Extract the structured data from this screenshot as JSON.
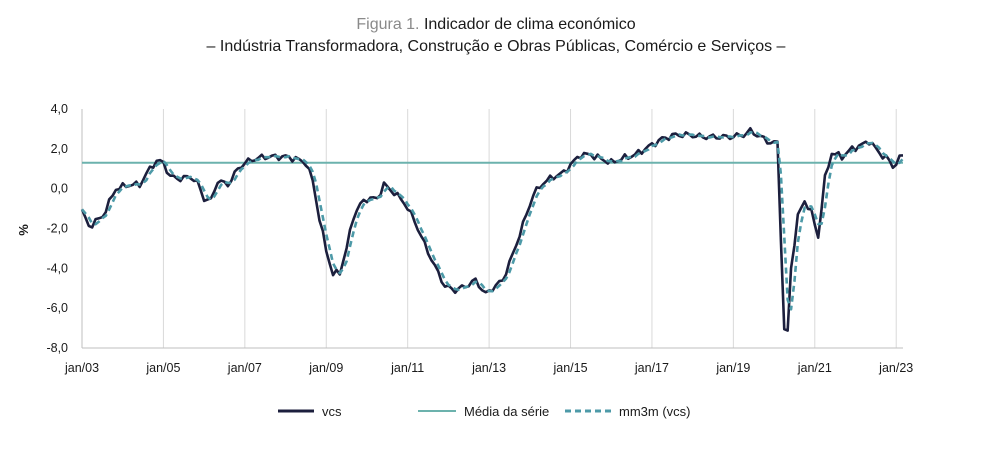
{
  "chart_data": {
    "type": "line",
    "title_prefix": "Figura 1.",
    "title": "Indicador de clima económico",
    "subtitle": "– Indústria Transformadora, Construção e Obras Públicas, Comércio e Serviços –",
    "xlabel": "",
    "ylabel": "%",
    "ylim": [
      -8,
      4
    ],
    "yticks": [
      -8,
      -6,
      -4,
      -2,
      0,
      2,
      4
    ],
    "ytick_labels": [
      "-8,0",
      "-6,0",
      "-4,0",
      "-2,0",
      "0,0",
      "2,0",
      "4,0"
    ],
    "xlim": [
      "2003-01",
      "2023-03"
    ],
    "xtick_labels": [
      "jan/03",
      "jan/05",
      "jan/07",
      "jan/09",
      "jan/11",
      "jan/13",
      "jan/15",
      "jan/17",
      "jan/19",
      "jan/21",
      "jan/23"
    ],
    "grid": "vertical",
    "legend_position": "bottom",
    "colors": {
      "vcs": "#1c1f3d",
      "media": "#6cb2ad",
      "mm3m": "#4d9aa8"
    },
    "anchors": [
      [
        "2003-01",
        -1.1
      ],
      [
        "2003-03",
        -1.9
      ],
      [
        "2003-07",
        -1.4
      ],
      [
        "2003-11",
        0.0
      ],
      [
        "2004-03",
        0.2
      ],
      [
        "2004-06",
        0.2
      ],
      [
        "2004-09",
        1.0
      ],
      [
        "2004-11",
        1.4
      ],
      [
        "2005-01",
        1.3
      ],
      [
        "2005-03",
        0.6
      ],
      [
        "2005-06",
        0.5
      ],
      [
        "2005-09",
        0.6
      ],
      [
        "2005-11",
        0.3
      ],
      [
        "2006-01",
        -0.5
      ],
      [
        "2006-03",
        -0.6
      ],
      [
        "2006-05",
        0.4
      ],
      [
        "2006-08",
        0.2
      ],
      [
        "2006-11",
        1.0
      ],
      [
        "2007-01",
        1.3
      ],
      [
        "2007-04",
        1.5
      ],
      [
        "2007-07",
        1.6
      ],
      [
        "2007-10",
        1.6
      ],
      [
        "2008-01",
        1.6
      ],
      [
        "2008-04",
        1.5
      ],
      [
        "2008-07",
        1.3
      ],
      [
        "2008-09",
        0.4
      ],
      [
        "2008-11",
        -1.5
      ],
      [
        "2009-01",
        -3.1
      ],
      [
        "2009-03",
        -4.3
      ],
      [
        "2009-05",
        -4.2
      ],
      [
        "2009-07",
        -3.0
      ],
      [
        "2009-09",
        -1.4
      ],
      [
        "2009-11",
        -0.8
      ],
      [
        "2010-01",
        -0.5
      ],
      [
        "2010-04",
        -0.5
      ],
      [
        "2010-06",
        0.2
      ],
      [
        "2010-09",
        -0.2
      ],
      [
        "2010-12",
        -0.7
      ],
      [
        "2011-03",
        -1.6
      ],
      [
        "2011-06",
        -2.8
      ],
      [
        "2011-09",
        -3.9
      ],
      [
        "2011-12",
        -4.9
      ],
      [
        "2012-03",
        -5.1
      ],
      [
        "2012-06",
        -4.9
      ],
      [
        "2012-09",
        -4.6
      ],
      [
        "2012-12",
        -5.3
      ],
      [
        "2013-02",
        -5.0
      ],
      [
        "2013-05",
        -4.6
      ],
      [
        "2013-08",
        -3.3
      ],
      [
        "2013-11",
        -1.8
      ],
      [
        "2014-02",
        -0.3
      ],
      [
        "2014-05",
        0.3
      ],
      [
        "2014-08",
        0.6
      ],
      [
        "2014-11",
        0.8
      ],
      [
        "2015-01",
        1.2
      ],
      [
        "2015-04",
        1.7
      ],
      [
        "2015-07",
        1.7
      ],
      [
        "2015-10",
        1.5
      ],
      [
        "2016-01",
        1.3
      ],
      [
        "2016-04",
        1.5
      ],
      [
        "2016-08",
        1.7
      ],
      [
        "2016-12",
        2.1
      ],
      [
        "2017-04",
        2.5
      ],
      [
        "2017-08",
        2.7
      ],
      [
        "2017-12",
        2.7
      ],
      [
        "2018-04",
        2.6
      ],
      [
        "2018-08",
        2.6
      ],
      [
        "2018-12",
        2.6
      ],
      [
        "2019-04",
        2.7
      ],
      [
        "2019-06",
        2.9
      ],
      [
        "2019-09",
        2.6
      ],
      [
        "2019-12",
        2.3
      ],
      [
        "2020-02",
        2.3
      ],
      [
        "2020-04",
        -7.1
      ],
      [
        "2020-05",
        -7.2
      ],
      [
        "2020-06",
        -4.0
      ],
      [
        "2020-08",
        -1.4
      ],
      [
        "2020-10",
        -0.6
      ],
      [
        "2020-12",
        -1.2
      ],
      [
        "2021-02",
        -2.4
      ],
      [
        "2021-04",
        0.5
      ],
      [
        "2021-06",
        1.8
      ],
      [
        "2021-09",
        1.6
      ],
      [
        "2021-12",
        2.0
      ],
      [
        "2022-03",
        2.2
      ],
      [
        "2022-05",
        2.4
      ],
      [
        "2022-08",
        1.8
      ],
      [
        "2022-11",
        1.4
      ],
      [
        "2022-12",
        1.1
      ],
      [
        "2023-02",
        1.5
      ],
      [
        "2023-03",
        1.7
      ]
    ],
    "series": [
      {
        "name": "vcs",
        "style": "solid",
        "values": "monthly values interpolated from anchors"
      },
      {
        "name": "Média da série",
        "style": "solid",
        "values": [
          1.3
        ]
      },
      {
        "name": "mm3m (vcs)",
        "style": "dashed",
        "values": "3-month moving average of vcs"
      }
    ]
  }
}
